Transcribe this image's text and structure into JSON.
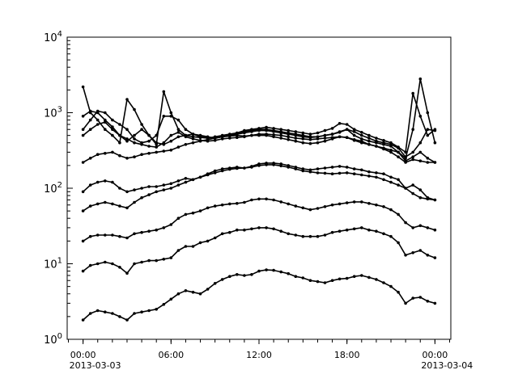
{
  "chart_data": {
    "type": "line",
    "title": "",
    "xlabel": "",
    "ylabel": "",
    "yscale": "log",
    "ylim": [
      1,
      10000
    ],
    "xlim": [
      "2013-03-02T22:55",
      "2013-03-04T01:05"
    ],
    "grid": false,
    "legend": "none",
    "line_color": "#000000",
    "marker": "dot",
    "y_ticks": [
      {
        "base": "10",
        "exp": "0",
        "value": 1
      },
      {
        "base": "10",
        "exp": "1",
        "value": 10
      },
      {
        "base": "10",
        "exp": "2",
        "value": 100
      },
      {
        "base": "10",
        "exp": "3",
        "value": 1000
      },
      {
        "base": "10",
        "exp": "4",
        "value": 10000
      }
    ],
    "x_ticks": [
      {
        "time": "2013-03-03T00:00",
        "label": "00:00",
        "date": "2013-03-03"
      },
      {
        "time": "2013-03-03T06:00",
        "label": "06:00",
        "date": ""
      },
      {
        "time": "2013-03-03T12:00",
        "label": "12:00",
        "date": ""
      },
      {
        "time": "2013-03-03T18:00",
        "label": "18:00",
        "date": ""
      },
      {
        "time": "2013-03-04T00:00",
        "label": "00:00",
        "date": "2013-03-04"
      }
    ],
    "x": [
      "2013-03-03T00:00",
      "2013-03-03T00:30",
      "2013-03-03T01:00",
      "2013-03-03T01:30",
      "2013-03-03T02:00",
      "2013-03-03T02:30",
      "2013-03-03T03:00",
      "2013-03-03T03:30",
      "2013-03-03T04:00",
      "2013-03-03T04:30",
      "2013-03-03T05:00",
      "2013-03-03T05:30",
      "2013-03-03T06:00",
      "2013-03-03T06:30",
      "2013-03-03T07:00",
      "2013-03-03T07:30",
      "2013-03-03T08:00",
      "2013-03-03T08:30",
      "2013-03-03T09:00",
      "2013-03-03T09:30",
      "2013-03-03T10:00",
      "2013-03-03T10:30",
      "2013-03-03T11:00",
      "2013-03-03T11:30",
      "2013-03-03T12:00",
      "2013-03-03T12:30",
      "2013-03-03T13:00",
      "2013-03-03T13:30",
      "2013-03-03T14:00",
      "2013-03-03T14:30",
      "2013-03-03T15:00",
      "2013-03-03T15:30",
      "2013-03-03T16:00",
      "2013-03-03T16:30",
      "2013-03-03T17:00",
      "2013-03-03T17:30",
      "2013-03-03T18:00",
      "2013-03-03T18:30",
      "2013-03-03T19:00",
      "2013-03-03T19:30",
      "2013-03-03T20:00",
      "2013-03-03T20:30",
      "2013-03-03T21:00",
      "2013-03-03T21:30",
      "2013-03-03T22:00",
      "2013-03-03T22:30",
      "2013-03-03T23:00",
      "2013-03-03T23:30",
      "2013-03-04T00:00"
    ],
    "series": [
      {
        "values": [
          1.8,
          2.2,
          2.4,
          2.3,
          2.2,
          2.0,
          1.8,
          2.2,
          2.3,
          2.4,
          2.5,
          2.9,
          3.4,
          4.0,
          4.4,
          4.2,
          4.0,
          4.6,
          5.5,
          6.2,
          6.8,
          7.2,
          7.0,
          7.2,
          8.0,
          8.3,
          8.2,
          7.8,
          7.4,
          6.8,
          6.5,
          6.0,
          5.8,
          5.6,
          6.0,
          6.3,
          6.4,
          6.8,
          7.0,
          6.6,
          6.2,
          5.6,
          5.0,
          4.2,
          3.0,
          3.5,
          3.6,
          3.2,
          3.0
        ]
      },
      {
        "values": [
          8,
          9.5,
          10,
          10.5,
          10,
          9,
          7.5,
          10,
          10.5,
          11,
          11,
          11.5,
          12,
          15,
          17,
          17,
          19,
          20,
          22,
          25,
          26,
          28,
          28,
          29,
          30,
          30,
          29,
          27,
          25,
          24,
          23,
          23,
          23,
          24,
          26,
          27,
          28,
          29,
          30,
          28,
          27,
          25,
          23,
          19,
          13,
          14,
          15,
          13,
          12
        ]
      },
      {
        "values": [
          20,
          23,
          24,
          24,
          24,
          23,
          22,
          25,
          26,
          27,
          28,
          30,
          33,
          40,
          45,
          47,
          50,
          55,
          58,
          60,
          62,
          63,
          65,
          70,
          72,
          72,
          70,
          66,
          62,
          58,
          55,
          52,
          54,
          57,
          60,
          62,
          64,
          66,
          66,
          63,
          60,
          57,
          52,
          45,
          35,
          30,
          32,
          30,
          28
        ]
      },
      {
        "values": [
          50,
          58,
          62,
          65,
          62,
          58,
          55,
          65,
          75,
          82,
          90,
          95,
          100,
          110,
          120,
          130,
          140,
          150,
          160,
          170,
          178,
          183,
          185,
          190,
          200,
          205,
          205,
          198,
          190,
          180,
          170,
          165,
          160,
          158,
          155,
          158,
          160,
          155,
          150,
          145,
          140,
          130,
          120,
          110,
          100,
          85,
          75,
          72,
          70
        ]
      },
      {
        "values": [
          90,
          110,
          120,
          125,
          120,
          100,
          90,
          95,
          100,
          105,
          105,
          110,
          115,
          125,
          135,
          130,
          140,
          155,
          170,
          180,
          185,
          190,
          185,
          195,
          210,
          215,
          215,
          210,
          200,
          190,
          180,
          175,
          180,
          185,
          190,
          195,
          190,
          180,
          175,
          165,
          160,
          155,
          140,
          130,
          100,
          110,
          95,
          75,
          70
        ]
      },
      {
        "values": [
          220,
          250,
          280,
          290,
          300,
          270,
          250,
          260,
          280,
          290,
          300,
          310,
          320,
          350,
          380,
          400,
          420,
          440,
          460,
          480,
          490,
          500,
          490,
          500,
          520,
          520,
          510,
          500,
          480,
          460,
          450,
          440,
          450,
          460,
          470,
          480,
          470,
          440,
          420,
          380,
          360,
          330,
          300,
          260,
          220,
          240,
          230,
          220,
          220
        ]
      },
      {
        "values": [
          2200,
          1000,
          800,
          600,
          500,
          400,
          1500,
          1100,
          700,
          500,
          400,
          380,
          420,
          480,
          500,
          520,
          500,
          480,
          460,
          480,
          500,
          520,
          560,
          580,
          600,
          600,
          580,
          560,
          540,
          520,
          500,
          480,
          480,
          500,
          520,
          550,
          600,
          500,
          450,
          420,
          400,
          380,
          360,
          300,
          250,
          600,
          2800,
          1000,
          400
        ]
      },
      {
        "values": [
          900,
          1050,
          1000,
          800,
          650,
          500,
          420,
          500,
          600,
          500,
          380,
          1900,
          1000,
          600,
          500,
          480,
          470,
          460,
          480,
          500,
          520,
          540,
          580,
          600,
          620,
          640,
          620,
          600,
          580,
          560,
          540,
          520,
          540,
          580,
          620,
          720,
          700,
          600,
          550,
          500,
          460,
          430,
          400,
          350,
          300,
          1800,
          900,
          500,
          600
        ]
      },
      {
        "values": [
          600,
          800,
          1050,
          1000,
          800,
          700,
          600,
          450,
          400,
          420,
          500,
          900,
          900,
          800,
          600,
          520,
          480,
          470,
          460,
          480,
          500,
          520,
          540,
          560,
          580,
          580,
          560,
          540,
          520,
          500,
          480,
          470,
          480,
          500,
          520,
          560,
          600,
          560,
          500,
          460,
          420,
          400,
          380,
          340,
          260,
          300,
          400,
          600,
          580
        ]
      },
      {
        "values": [
          500,
          600,
          700,
          750,
          600,
          500,
          450,
          400,
          380,
          360,
          350,
          400,
          500,
          550,
          480,
          450,
          430,
          420,
          430,
          450,
          460,
          470,
          480,
          500,
          500,
          500,
          480,
          460,
          440,
          420,
          400,
          390,
          400,
          420,
          450,
          480,
          470,
          430,
          400,
          380,
          360,
          340,
          320,
          300,
          230,
          260,
          300,
          250,
          220
        ]
      }
    ]
  }
}
